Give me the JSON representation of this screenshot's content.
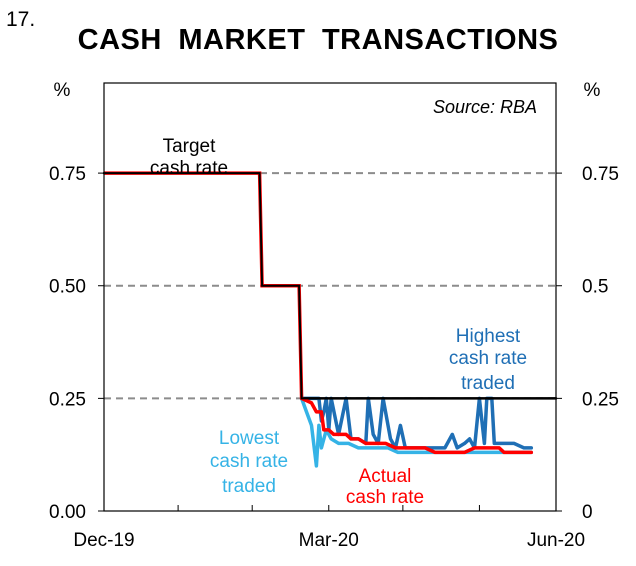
{
  "figure": {
    "number": "17.",
    "title": "CASH MARKET  TRANSACTIONS"
  },
  "chart_data": {
    "type": "line",
    "title": "CASH MARKET TRANSACTIONS",
    "source": "Source: RBA",
    "y_unit_left": "%",
    "y_unit_right": "%",
    "ylim": [
      0,
      0.95
    ],
    "y_ticks_left": [
      "0.00",
      "0.25",
      "0.50",
      "0.75"
    ],
    "y_ticks_right": [
      "0",
      "0.25",
      "0.5",
      "0.75"
    ],
    "y_tick_values": [
      0,
      0.25,
      0.5,
      0.75
    ],
    "x_range_days": [
      0,
      183
    ],
    "x_ticks": [
      {
        "label": "Dec-19",
        "day": 0
      },
      {
        "label": "Mar-20",
        "day": 91
      },
      {
        "label": "Jun-20",
        "day": 183
      }
    ],
    "x_minor_tick_days": [
      30,
      60,
      121,
      152
    ],
    "grid": "horizontal dashed at 0.25, 0.50, 0.75",
    "series": [
      {
        "name": "Target cash rate",
        "color": "#000000",
        "points": [
          [
            0,
            0.75
          ],
          [
            63,
            0.75
          ],
          [
            64,
            0.5
          ],
          [
            79,
            0.5
          ],
          [
            80,
            0.25
          ],
          [
            183,
            0.25
          ]
        ]
      },
      {
        "name": "Highest cash rate traded",
        "color": "#1f6fb5",
        "points": [
          [
            80,
            0.25
          ],
          [
            84,
            0.25
          ],
          [
            87,
            0.25
          ],
          [
            88,
            0.2
          ],
          [
            89,
            0.22
          ],
          [
            90,
            0.25
          ],
          [
            91,
            0.18
          ],
          [
            92,
            0.25
          ],
          [
            95,
            0.17
          ],
          [
            98,
            0.25
          ],
          [
            100,
            0.16
          ],
          [
            103,
            0.16
          ],
          [
            106,
            0.15
          ],
          [
            107,
            0.25
          ],
          [
            109,
            0.17
          ],
          [
            111,
            0.15
          ],
          [
            113,
            0.25
          ],
          [
            116,
            0.16
          ],
          [
            118,
            0.14
          ],
          [
            120,
            0.19
          ],
          [
            122,
            0.14
          ],
          [
            126,
            0.14
          ],
          [
            130,
            0.14
          ],
          [
            134,
            0.14
          ],
          [
            138,
            0.14
          ],
          [
            141,
            0.17
          ],
          [
            143,
            0.14
          ],
          [
            146,
            0.15
          ],
          [
            148,
            0.16
          ],
          [
            150,
            0.14
          ],
          [
            152,
            0.25
          ],
          [
            154,
            0.15
          ],
          [
            155,
            0.25
          ],
          [
            157,
            0.25
          ],
          [
            158,
            0.15
          ],
          [
            162,
            0.15
          ],
          [
            166,
            0.15
          ],
          [
            170,
            0.14
          ],
          [
            173,
            0.14
          ]
        ]
      },
      {
        "name": "Lowest cash rate traded",
        "color": "#35b3e6",
        "points": [
          [
            80,
            0.25
          ],
          [
            82,
            0.22
          ],
          [
            84,
            0.19
          ],
          [
            86,
            0.1
          ],
          [
            87,
            0.19
          ],
          [
            88,
            0.14
          ],
          [
            90,
            0.18
          ],
          [
            92,
            0.16
          ],
          [
            95,
            0.15
          ],
          [
            99,
            0.15
          ],
          [
            103,
            0.14
          ],
          [
            107,
            0.14
          ],
          [
            111,
            0.14
          ],
          [
            115,
            0.14
          ],
          [
            119,
            0.13
          ],
          [
            123,
            0.13
          ],
          [
            127,
            0.13
          ],
          [
            131,
            0.13
          ],
          [
            135,
            0.13
          ],
          [
            139,
            0.13
          ],
          [
            143,
            0.13
          ],
          [
            147,
            0.13
          ],
          [
            151,
            0.13
          ],
          [
            155,
            0.13
          ],
          [
            159,
            0.13
          ],
          [
            163,
            0.13
          ],
          [
            167,
            0.13
          ],
          [
            173,
            0.13
          ]
        ]
      },
      {
        "name": "Actual cash rate",
        "color": "#ff0000",
        "points": [
          [
            80,
            0.25
          ],
          [
            84,
            0.24
          ],
          [
            86,
            0.22
          ],
          [
            88,
            0.22
          ],
          [
            89,
            0.18
          ],
          [
            91,
            0.18
          ],
          [
            93,
            0.17
          ],
          [
            96,
            0.17
          ],
          [
            98,
            0.17
          ],
          [
            100,
            0.16
          ],
          [
            103,
            0.16
          ],
          [
            106,
            0.15
          ],
          [
            110,
            0.15
          ],
          [
            114,
            0.15
          ],
          [
            118,
            0.14
          ],
          [
            122,
            0.14
          ],
          [
            126,
            0.14
          ],
          [
            130,
            0.14
          ],
          [
            134,
            0.13
          ],
          [
            138,
            0.13
          ],
          [
            142,
            0.13
          ],
          [
            146,
            0.13
          ],
          [
            150,
            0.14
          ],
          [
            154,
            0.14
          ],
          [
            158,
            0.14
          ],
          [
            160,
            0.14
          ],
          [
            162,
            0.13
          ],
          [
            166,
            0.13
          ],
          [
            170,
            0.13
          ],
          [
            173,
            0.13
          ]
        ]
      }
    ],
    "annotations": {
      "target": [
        "Target",
        "cash rate"
      ],
      "highest": [
        "Highest",
        "cash rate",
        "traded"
      ],
      "lowest": [
        "Lowest",
        "cash rate",
        "traded"
      ],
      "actual": [
        "Actual",
        "cash rate"
      ]
    }
  }
}
